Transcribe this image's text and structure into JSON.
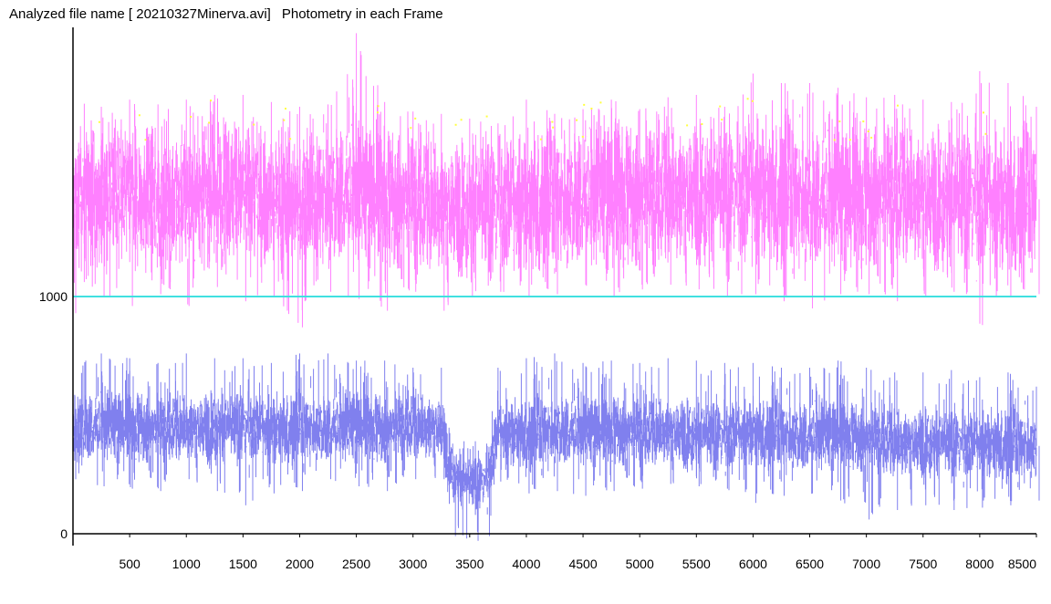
{
  "header": {
    "file_label": "Analyzed file name [ 20210327Minerva.avi]",
    "title": "Photometry in each Frame"
  },
  "colors": {
    "target_series": "#ff80ff",
    "comparison_series": "#8080ee",
    "reference_line": "#40e0e0",
    "outlier_points": "#ffff40",
    "axis": "#000000"
  },
  "chart_data": {
    "type": "line",
    "title": "Photometry in each Frame",
    "xlabel": "",
    "ylabel": "",
    "xlim": [
      0,
      8500
    ],
    "ylim": [
      -10,
      2100
    ],
    "x_ticks": [
      500,
      1000,
      1500,
      2000,
      2500,
      3000,
      3500,
      4000,
      4500,
      5000,
      5500,
      6000,
      6500,
      7000,
      7500,
      8000,
      8500
    ],
    "y_ticks": [
      0,
      1000
    ],
    "reference_line": {
      "y": 1000
    },
    "grid": false,
    "legend": "none",
    "series": [
      {
        "x": [
          0,
          250,
          500,
          750,
          1000,
          1250,
          1500,
          1750,
          2000,
          2250,
          2500,
          2750,
          3000,
          3250,
          3500,
          3750,
          4000,
          4250,
          4500,
          4750,
          5000,
          5250,
          5500,
          5750,
          6000,
          6250,
          6500,
          6750,
          7000,
          7250,
          7500,
          7750,
          8000,
          8250,
          8500
        ],
        "mean": [
          1410,
          1430,
          1420,
          1400,
          1420,
          1450,
          1440,
          1420,
          1400,
          1430,
          1440,
          1410,
          1400,
          1390,
          1380,
          1390,
          1400,
          1410,
          1420,
          1430,
          1420,
          1440,
          1450,
          1430,
          1460,
          1440,
          1420,
          1410,
          1420,
          1440,
          1430,
          1420,
          1410,
          1400,
          1410
        ],
        "spread": [
          190,
          190,
          195,
          200,
          190,
          200,
          195,
          190,
          200,
          195,
          190,
          195,
          190,
          185,
          185,
          190,
          195,
          195,
          190,
          200,
          195,
          200,
          195,
          190,
          200,
          195,
          195,
          190,
          195,
          200,
          195,
          195,
          200,
          195,
          190
        ],
        "min": [
          930,
          1000,
          960,
          1010,
          960,
          1040,
          980,
          1000,
          870,
          1020,
          990,
          940,
          1020,
          940,
          1000,
          1020,
          1000,
          1010,
          1050,
          1000,
          1030,
          1050,
          1030,
          1000,
          1010,
          980,
          950,
          1010,
          1010,
          980,
          1000,
          1020,
          880,
          1000,
          1010
        ],
        "max": [
          1930,
          1800,
          1830,
          1810,
          1830,
          1850,
          1850,
          1820,
          1800,
          1810,
          2110,
          1820,
          1780,
          1770,
          1750,
          1730,
          1830,
          1770,
          1790,
          1830,
          1790,
          1840,
          1850,
          1800,
          1940,
          1900,
          1900,
          1880,
          1840,
          1850,
          1830,
          1820,
          1950,
          1900,
          1800
        ]
      },
      {
        "x": [
          0,
          250,
          500,
          750,
          1000,
          1250,
          1500,
          1750,
          2000,
          2250,
          2500,
          2750,
          3000,
          3250,
          3350,
          3450,
          3550,
          3650,
          3750,
          4000,
          4250,
          4500,
          4750,
          5000,
          5250,
          5500,
          5750,
          6000,
          6250,
          6500,
          6750,
          7000,
          7250,
          7500,
          7750,
          8000,
          8250,
          8500
        ],
        "mean": [
          445,
          455,
          450,
          440,
          455,
          450,
          460,
          440,
          450,
          445,
          455,
          440,
          460,
          450,
          260,
          220,
          215,
          230,
          430,
          420,
          440,
          430,
          435,
          430,
          440,
          420,
          415,
          430,
          420,
          410,
          420,
          400,
          390,
          390,
          385,
          380,
          380,
          370
        ],
        "spread": [
          95,
          95,
          100,
          95,
          95,
          100,
          95,
          100,
          95,
          95,
          100,
          95,
          95,
          95,
          75,
          75,
          75,
          75,
          95,
          95,
          100,
          95,
          95,
          100,
          95,
          95,
          100,
          95,
          95,
          100,
          95,
          95,
          100,
          95,
          95,
          95,
          100,
          95
        ],
        "min": [
          230,
          200,
          190,
          180,
          230,
          180,
          120,
          170,
          180,
          230,
          200,
          180,
          230,
          230,
          -10,
          -20,
          -30,
          -10,
          220,
          170,
          180,
          160,
          180,
          190,
          210,
          200,
          190,
          130,
          160,
          170,
          140,
          60,
          100,
          120,
          100,
          110,
          120,
          140
        ],
        "max": [
          750,
          760,
          740,
          720,
          760,
          740,
          740,
          720,
          760,
          760,
          730,
          730,
          700,
          700,
          380,
          390,
          390,
          380,
          700,
          740,
          760,
          720,
          730,
          720,
          740,
          730,
          720,
          720,
          700,
          700,
          730,
          700,
          680,
          680,
          690,
          660,
          680,
          620
        ]
      }
    ]
  }
}
